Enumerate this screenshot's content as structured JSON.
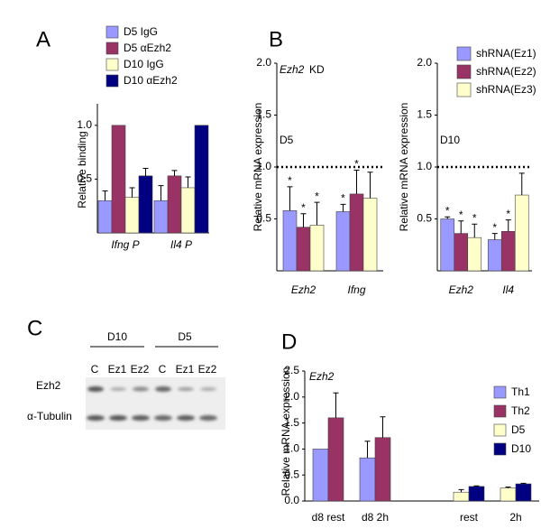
{
  "chart_data": [
    {
      "type": "bar",
      "panel_label": "A",
      "ylabel": "Relative binding",
      "categories": [
        "Ifng P",
        "Il4 P"
      ],
      "series": [
        {
          "name": "D5 IgG",
          "color": "#9999ff",
          "values": [
            0.3,
            0.3
          ],
          "errors": [
            0.09,
            0.14
          ]
        },
        {
          "name": "D5 αEzh2",
          "color": "#993366",
          "values": [
            1.0,
            0.53
          ],
          "errors": [
            null,
            0.05
          ]
        },
        {
          "name": "D10 IgG",
          "color": "#ffffcc",
          "values": [
            0.33,
            0.42
          ],
          "errors": [
            0.09,
            0.1
          ]
        },
        {
          "name": "D10 αEzh2",
          "color": "#000080",
          "values": [
            0.53,
            1.0
          ],
          "errors": [
            0.07,
            null
          ]
        }
      ],
      "ylim": [
        0,
        1.2
      ],
      "yticks": [
        0.5,
        {
          "value": 1,
          "label": "1.0"
        }
      ]
    },
    {
      "type": "bar-panels",
      "panel_label": "B",
      "legend_entries": [
        {
          "name": "shRNA(Ez1)",
          "color": "#9999ff"
        },
        {
          "name": "shRNA(Ez2)",
          "color": "#993366"
        },
        {
          "name": "shRNA(Ez3)",
          "color": "#ffffcc"
        }
      ],
      "subplots": [
        {
          "ylabel": "Relative mRNA expression",
          "title_gene": "Ezh2",
          "title_suffix": "KD",
          "condition": "D5",
          "categories": [
            "Ezh2",
            "Ifng"
          ],
          "ref_line": 1,
          "series": [
            {
              "values": [
                0.58,
                0.57
              ],
              "errors": [
                0.23,
                0.07
              ],
              "significance": [
                "*",
                "*"
              ]
            },
            {
              "values": [
                0.42,
                0.74
              ],
              "errors": [
                0.13,
                0.23
              ],
              "significance": [
                "*",
                "*"
              ]
            },
            {
              "values": [
                0.44,
                0.7
              ],
              "errors": [
                0.22,
                0.25
              ],
              "significance": [
                "*",
                null
              ]
            }
          ],
          "ylim": [
            0,
            2
          ],
          "yticks": [
            0.5,
            {
              "value": 1,
              "label": "1.0"
            },
            1.5,
            {
              "value": 2,
              "label": "2.0"
            }
          ]
        },
        {
          "ylabel": "Relative mRNA expression",
          "condition": "D10",
          "categories": [
            "Ezh2",
            "Il4"
          ],
          "ref_line": 1,
          "series": [
            {
              "values": [
                0.5,
                0.3
              ],
              "errors": [
                0.02,
                0.06
              ],
              "significance": [
                "*",
                "*"
              ]
            },
            {
              "values": [
                0.36,
                0.38
              ],
              "errors": [
                0.12,
                0.11
              ],
              "significance": [
                "*",
                "*"
              ]
            },
            {
              "values": [
                0.32,
                0.73
              ],
              "errors": [
                0.13,
                0.21
              ],
              "significance": [
                "*",
                null
              ]
            }
          ],
          "ylim": [
            0,
            2
          ],
          "yticks": [
            0.5,
            {
              "value": 1,
              "label": "1.0"
            },
            1.5,
            {
              "value": 2,
              "label": "2.0"
            }
          ]
        }
      ]
    },
    {
      "type": "bar",
      "panel_label": "D",
      "ylabel": "Relative mRNA expression",
      "title_gene": "Ezh2",
      "categories": [
        "d8 rest",
        "d8 2h",
        null,
        "rest",
        "2h"
      ],
      "series": [
        {
          "name": "Th1",
          "color": "#9999ff",
          "values": [
            1.0,
            0.83,
            null,
            null,
            null
          ],
          "errors": [
            null,
            0.32,
            null,
            null,
            null
          ]
        },
        {
          "name": "Th2",
          "color": "#993366",
          "values": [
            1.6,
            1.22,
            null,
            null,
            null
          ],
          "errors": [
            0.48,
            0.4,
            null,
            null,
            null
          ]
        },
        {
          "name": "D5",
          "color": "#ffffcc",
          "values": [
            null,
            null,
            null,
            0.17,
            0.25
          ],
          "errors": [
            null,
            null,
            null,
            0.05,
            0.02
          ]
        },
        {
          "name": "D10",
          "color": "#000080",
          "values": [
            null,
            null,
            null,
            0.28,
            0.33
          ],
          "errors": [
            null,
            null,
            null,
            0.01,
            0.01
          ]
        }
      ],
      "ylim": [
        0,
        2.5
      ],
      "yticks": [
        {
          "value": 0,
          "label": "0.0"
        },
        0.5,
        {
          "value": 1,
          "label": "1.0"
        },
        1.5,
        {
          "value": 2,
          "label": "2.0"
        },
        2.5
      ]
    }
  ],
  "blot": {
    "panel_label": "C",
    "groups": [
      "D10",
      "D5"
    ],
    "lanes": [
      "C",
      "Ez1",
      "Ez2",
      "C",
      "Ez1",
      "Ez2"
    ],
    "rows": [
      "Ezh2",
      "α-Tubulin"
    ]
  }
}
